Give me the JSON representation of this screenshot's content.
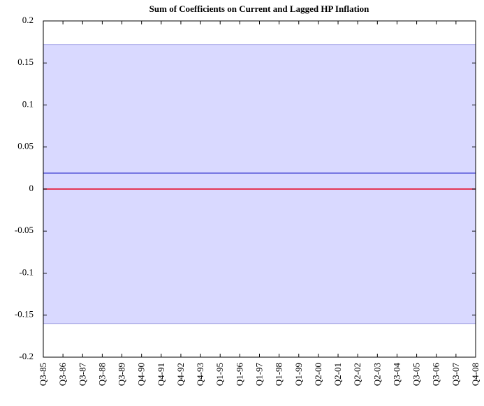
{
  "chart_data": {
    "type": "line",
    "title": "Sum of Coefficients on Current and Lagged HP Inflation",
    "categories": [
      "Q3-85",
      "Q3-86",
      "Q3-87",
      "Q3-88",
      "Q3-89",
      "Q4-90",
      "Q4-91",
      "Q4-92",
      "Q4-93",
      "Q1-95",
      "Q1-96",
      "Q1-97",
      "Q1-98",
      "Q1-99",
      "Q2-00",
      "Q2-01",
      "Q2-02",
      "Q2-03",
      "Q3-04",
      "Q3-05",
      "Q3-06",
      "Q3-07",
      "Q4-08"
    ],
    "band": {
      "color": "#d9d9ff",
      "edge_color": "#9c9ce3",
      "upper": [
        0.172,
        0.172,
        0.172,
        0.172,
        0.172,
        0.172,
        0.172,
        0.172,
        0.172,
        0.172,
        0.172,
        0.172,
        0.172,
        0.172,
        0.172,
        0.172,
        0.172,
        0.172,
        0.172,
        0.172,
        0.172,
        0.172,
        0.172
      ],
      "lower": [
        -0.16,
        -0.16,
        -0.16,
        -0.16,
        -0.16,
        -0.16,
        -0.16,
        -0.16,
        -0.16,
        -0.16,
        -0.16,
        -0.16,
        -0.16,
        -0.16,
        -0.16,
        -0.16,
        -0.16,
        -0.16,
        -0.16,
        -0.16,
        -0.16,
        -0.16,
        -0.16
      ]
    },
    "series": [
      {
        "color": "#3a3ad0",
        "values": [
          0.019,
          0.019,
          0.019,
          0.019,
          0.019,
          0.019,
          0.019,
          0.019,
          0.019,
          0.019,
          0.019,
          0.019,
          0.019,
          0.019,
          0.019,
          0.019,
          0.019,
          0.019,
          0.019,
          0.019,
          0.019,
          0.019,
          0.019
        ]
      },
      {
        "color": "#e8001c",
        "values": [
          0,
          0,
          0,
          0,
          0,
          0,
          0,
          0,
          0,
          0,
          0,
          0,
          0,
          0,
          0,
          0,
          0,
          0,
          0,
          0,
          0,
          0,
          0
        ]
      }
    ],
    "ylim": [
      -0.2,
      0.2
    ],
    "yticks": [
      -0.2,
      -0.15,
      -0.1,
      -0.05,
      0,
      0.05,
      0.1,
      0.15,
      0.2
    ],
    "grid": false
  }
}
